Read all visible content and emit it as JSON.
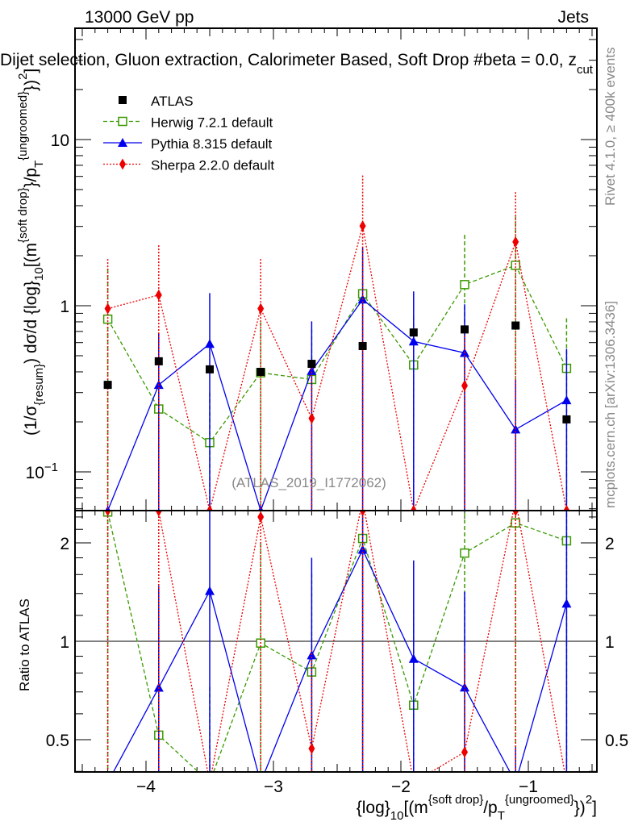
{
  "header": {
    "left": "13000 GeV pp",
    "right": "Jets"
  },
  "title": {
    "main": "Dijet selection, Gluon extraction, Calorimeter Based, Soft Drop #beta = 0.0, z",
    "sub": "cut"
  },
  "side_labels": {
    "rivet": "Rivet 4.1.0, ≥ 400k events",
    "mcplots": "mcplots.cern.ch [arXiv:1306.3436]"
  },
  "watermark": "(ATLAS_2019_I1772062)",
  "chart_data": {
    "type": "line",
    "x": [
      -4.3,
      -3.9,
      -3.5,
      -3.1,
      -2.7,
      -2.3,
      -1.9,
      -1.5,
      -1.1,
      -0.7
    ],
    "xlim": [
      -4.56,
      -0.47
    ],
    "ylim": [
      0.058,
      46
    ],
    "yscale": "log",
    "ratio_ylim": [
      0.4,
      2.5
    ],
    "xlabel": {
      "pre": "{log}",
      "sub1": "10",
      "mid": "[(m",
      "sup1": "{soft drop}",
      "mid2": "/p",
      "sub2": "T",
      "sup2": "{ungroomed}",
      "post": "})",
      "sup3": "2",
      "end": "]"
    },
    "ylabel": {
      "pre": "(1/σ",
      "sub1": "{resum}",
      "mid": ") dσ/d {log}",
      "sub2": "10",
      "mid2": "[(m",
      "sup1": "{soft drop}",
      "mid3": "}/p",
      "sub3": "T",
      "sup2": "{ungroomed}",
      "post": "})",
      "sup3": "2",
      "end": "]"
    },
    "ratio_ylabel": "Ratio to ATLAS",
    "x_ticks": [
      {
        "v": -4,
        "label": "−4"
      },
      {
        "v": -3,
        "label": "−3"
      },
      {
        "v": -2,
        "label": "−2"
      },
      {
        "v": -1,
        "label": "−1"
      }
    ],
    "y_ticks": [
      {
        "v": 0.1,
        "label": "10",
        "sup": "−1"
      },
      {
        "v": 1,
        "label": "1",
        "sup": ""
      },
      {
        "v": 10,
        "label": "10",
        "sup": ""
      }
    ],
    "ratio_ticks": [
      {
        "v": 0.5,
        "label": "0.5"
      },
      {
        "v": 1,
        "label": "1"
      },
      {
        "v": 2,
        "label": "2"
      }
    ],
    "series": [
      {
        "name": "ATLAS",
        "color": "#000000",
        "marker": "square",
        "dash": "none",
        "values": [
          0.334,
          0.463,
          0.414,
          0.4,
          0.447,
          0.572,
          0.69,
          0.72,
          0.76,
          0.207
        ],
        "errors": [
          0.01,
          0.012,
          0.01,
          0.01,
          0.012,
          0.015,
          0.02,
          0.02,
          0.02,
          0.01
        ]
      },
      {
        "name": "Herwig 7.2.1 default",
        "color": "#3a9a00",
        "marker": "open-square",
        "dash": "5,3",
        "values": [
          0.83,
          0.239,
          0.15,
          0.395,
          0.36,
          1.18,
          0.44,
          1.34,
          1.75,
          0.42
        ],
        "errors": [
          0.84,
          0.24,
          0.15,
          0.4,
          0.36,
          1.0,
          0.42,
          1.33,
          1.7,
          0.42
        ]
      },
      {
        "name": "Pythia 8.315 default",
        "color": "#0000ee",
        "marker": "triangle",
        "dash": "none",
        "values": [
          0,
          0.334,
          0.59,
          0,
          0.405,
          1.09,
          0.61,
          0.52,
          0.18,
          0.27
        ],
        "errors": [
          0,
          0.35,
          0.6,
          0,
          0.4,
          1.17,
          0.61,
          0.5,
          0.18,
          0.28
        ]
      },
      {
        "name": "Sherpa 2.2.0 default",
        "color": "#ee0000",
        "marker": "diamond",
        "dash": "2,2",
        "values": [
          0.96,
          1.16,
          0,
          0.96,
          0.21,
          3.02,
          0,
          0.33,
          2.42,
          0
        ],
        "errors": [
          0.95,
          1.15,
          0,
          0.95,
          0.21,
          3.05,
          0,
          0.33,
          2.4,
          0
        ]
      }
    ]
  }
}
